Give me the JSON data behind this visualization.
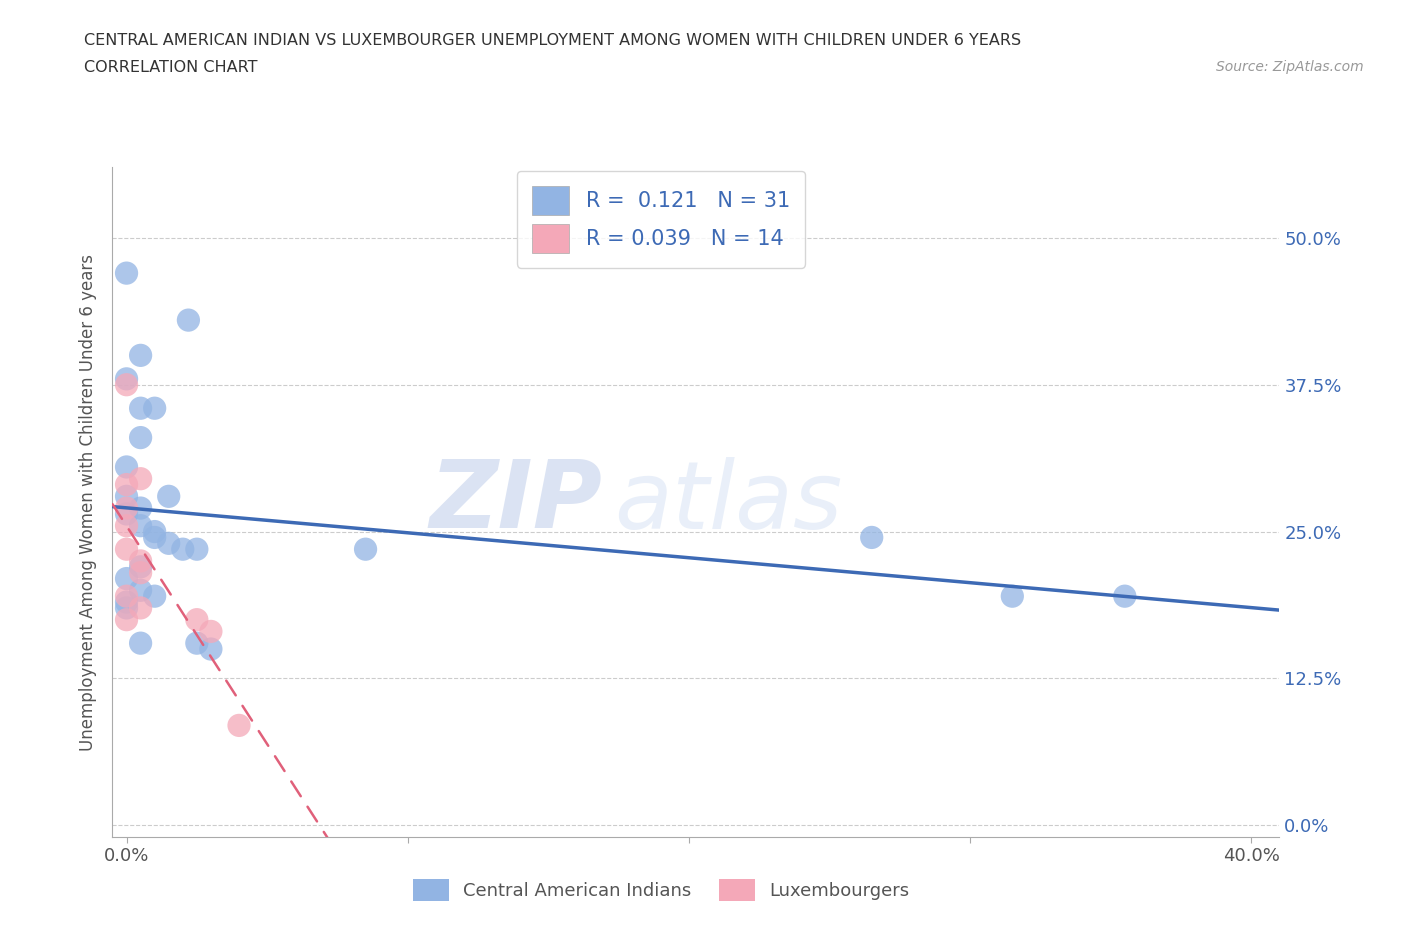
{
  "title_line1": "CENTRAL AMERICAN INDIAN VS LUXEMBOURGER UNEMPLOYMENT AMONG WOMEN WITH CHILDREN UNDER 6 YEARS",
  "title_line2": "CORRELATION CHART",
  "source": "Source: ZipAtlas.com",
  "ylabel": "Unemployment Among Women with Children Under 6 years",
  "xlim": [
    -0.005,
    0.41
  ],
  "ylim": [
    -0.01,
    0.56
  ],
  "yticks": [
    0.0,
    0.125,
    0.25,
    0.375,
    0.5
  ],
  "ytick_labels": [
    "0.0%",
    "12.5%",
    "25.0%",
    "37.5%",
    "50.0%"
  ],
  "xtick_labels_show": [
    "0.0%",
    "40.0%"
  ],
  "xticks_minor": [
    0.0,
    0.1,
    0.2,
    0.3,
    0.4
  ],
  "blue_R": 0.121,
  "blue_N": 31,
  "pink_R": 0.039,
  "pink_N": 14,
  "blue_color": "#92b4e3",
  "pink_color": "#f4a8b8",
  "blue_line_color": "#3d6ab5",
  "pink_line_color": "#e0607a",
  "watermark_zip": "ZIP",
  "watermark_atlas": "atlas",
  "blue_points": [
    [
      0.0,
      0.47
    ],
    [
      0.022,
      0.43
    ],
    [
      0.005,
      0.4
    ],
    [
      0.0,
      0.38
    ],
    [
      0.005,
      0.355
    ],
    [
      0.01,
      0.355
    ],
    [
      0.005,
      0.33
    ],
    [
      0.0,
      0.305
    ],
    [
      0.0,
      0.28
    ],
    [
      0.015,
      0.28
    ],
    [
      0.005,
      0.27
    ],
    [
      0.0,
      0.265
    ],
    [
      0.005,
      0.255
    ],
    [
      0.01,
      0.25
    ],
    [
      0.01,
      0.245
    ],
    [
      0.015,
      0.24
    ],
    [
      0.02,
      0.235
    ],
    [
      0.025,
      0.235
    ],
    [
      0.005,
      0.22
    ],
    [
      0.0,
      0.21
    ],
    [
      0.005,
      0.2
    ],
    [
      0.01,
      0.195
    ],
    [
      0.0,
      0.19
    ],
    [
      0.0,
      0.185
    ],
    [
      0.085,
      0.235
    ],
    [
      0.265,
      0.245
    ],
    [
      0.315,
      0.195
    ],
    [
      0.355,
      0.195
    ],
    [
      0.005,
      0.155
    ],
    [
      0.025,
      0.155
    ],
    [
      0.03,
      0.15
    ]
  ],
  "pink_points": [
    [
      0.0,
      0.375
    ],
    [
      0.005,
      0.295
    ],
    [
      0.0,
      0.29
    ],
    [
      0.0,
      0.27
    ],
    [
      0.0,
      0.255
    ],
    [
      0.0,
      0.235
    ],
    [
      0.005,
      0.225
    ],
    [
      0.005,
      0.215
    ],
    [
      0.0,
      0.195
    ],
    [
      0.005,
      0.185
    ],
    [
      0.0,
      0.175
    ],
    [
      0.025,
      0.175
    ],
    [
      0.03,
      0.165
    ],
    [
      0.04,
      0.085
    ]
  ]
}
